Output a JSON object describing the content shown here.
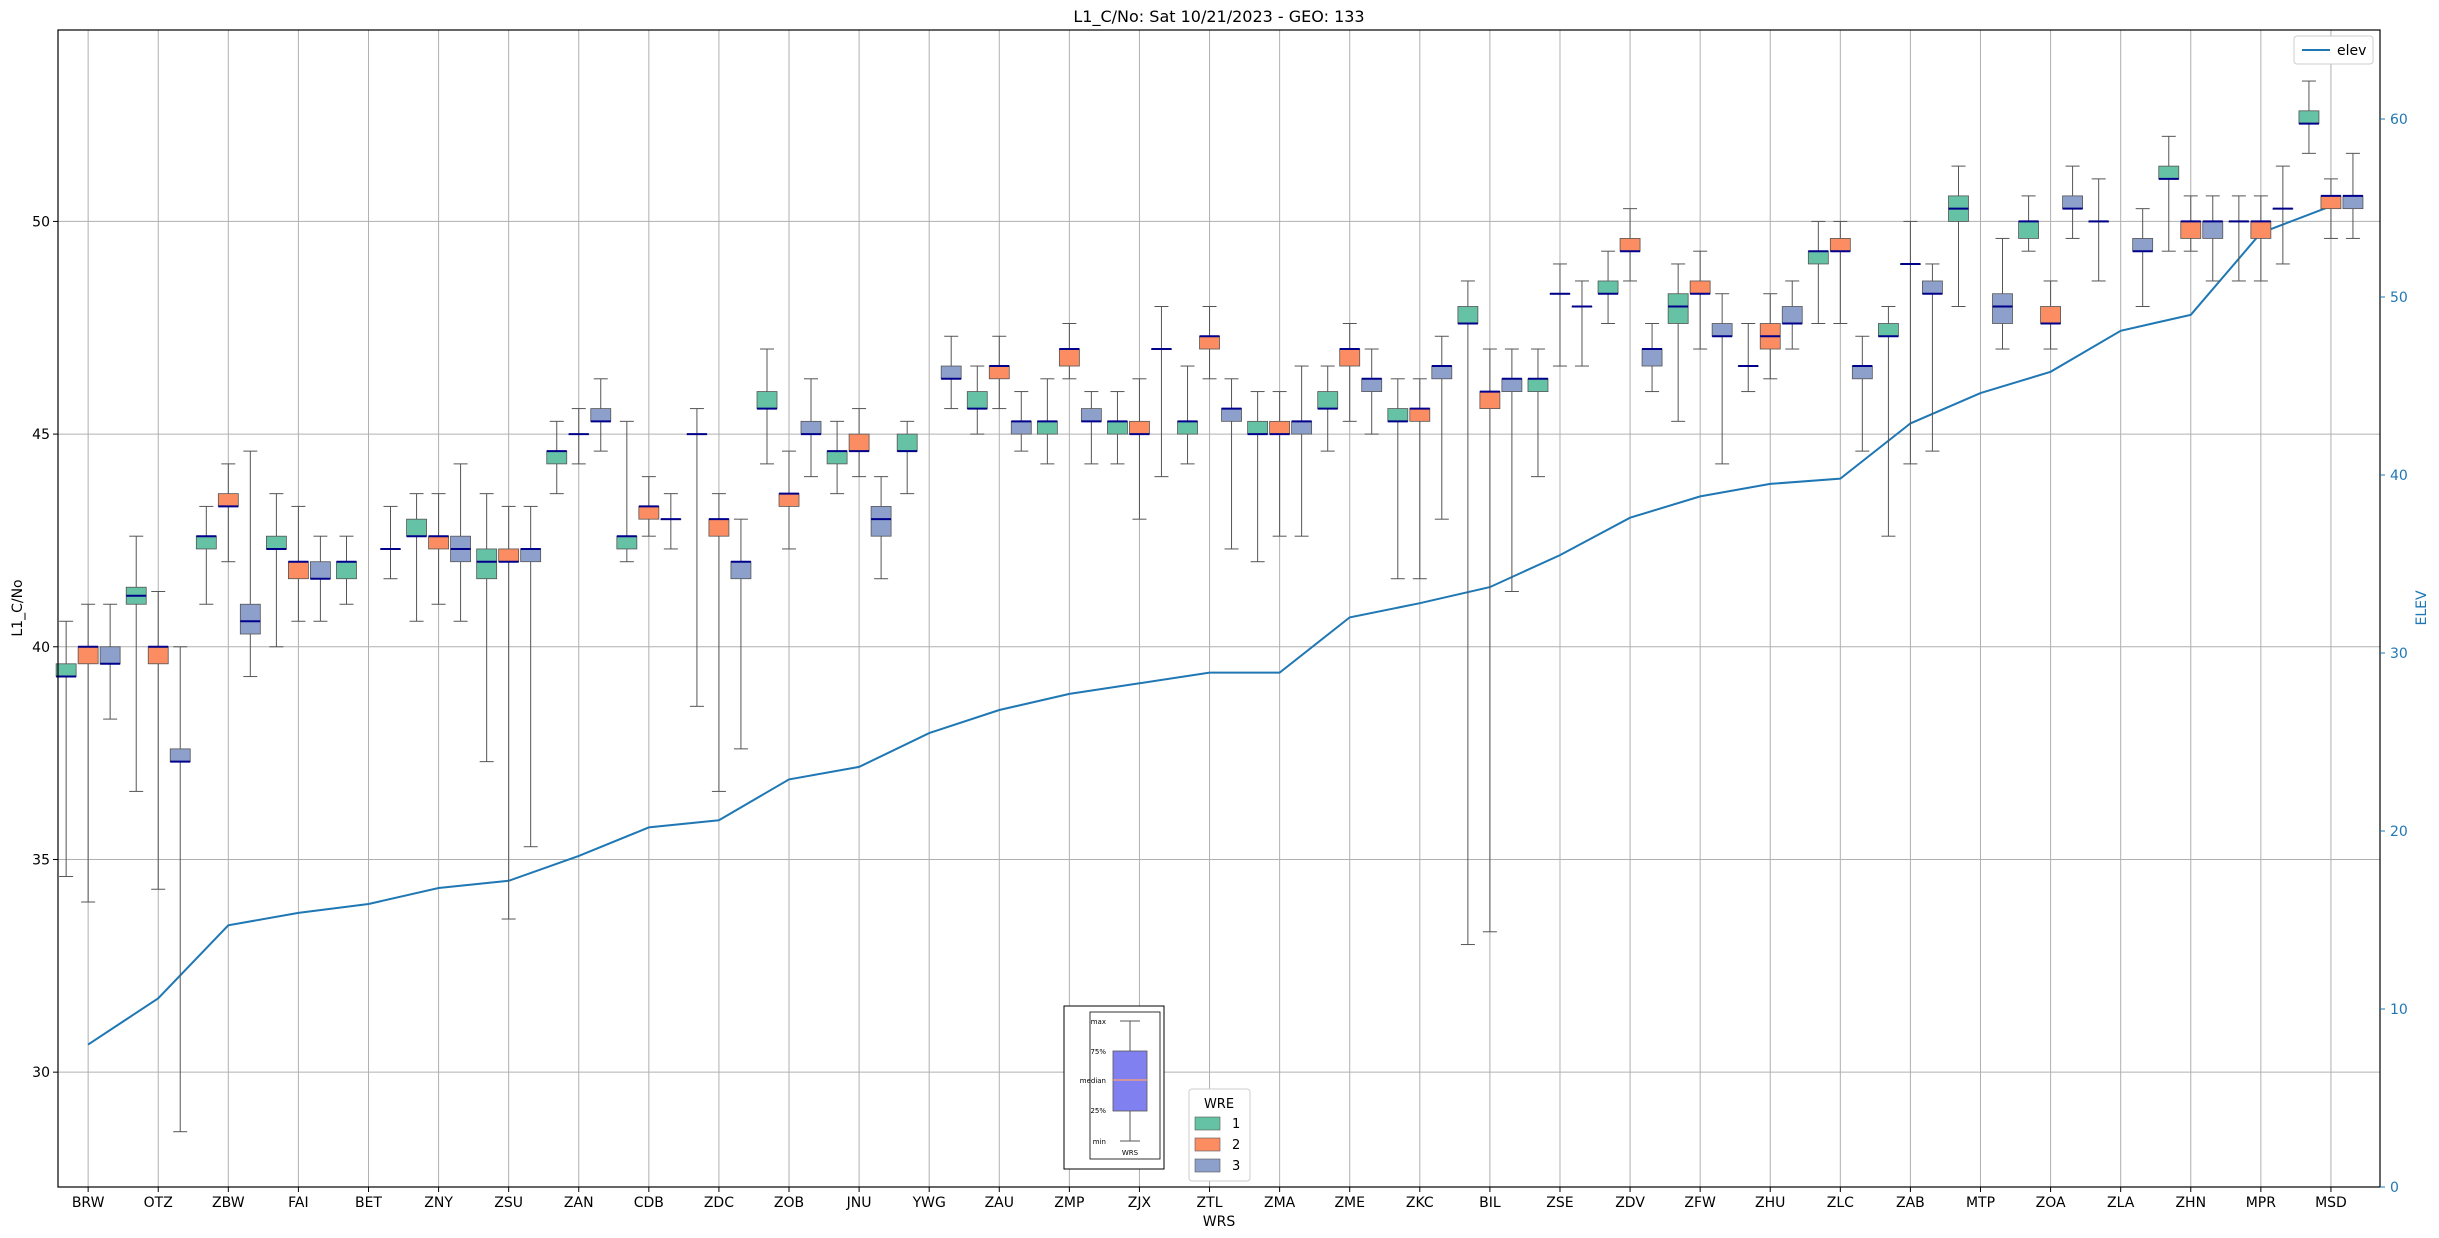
{
  "chart_data": {
    "type": "box",
    "title": "L1_C/No: Sat 10/21/2023 - GEO: 133",
    "xlabel": "WRS",
    "ylabel": "L1_C/No",
    "y2label": "ELEV",
    "ylim": [
      27.3,
      54.5
    ],
    "y2lim": [
      0,
      65
    ],
    "yticks": [
      "30",
      "35",
      "40",
      "45",
      "50"
    ],
    "y2ticks": [
      "0",
      "10",
      "20",
      "30",
      "40",
      "50",
      "60"
    ],
    "grid": true,
    "categories": [
      "BRW",
      "OTZ",
      "ZBW",
      "FAI",
      "BET",
      "ZNY",
      "ZSU",
      "ZAN",
      "CDB",
      "ZDC",
      "ZOB",
      "JNU",
      "YWG",
      "ZAU",
      "ZMP",
      "ZJX",
      "ZTL",
      "ZMA",
      "ZME",
      "ZKC",
      "BIL",
      "ZSE",
      "ZDV",
      "ZFW",
      "ZHU",
      "ZLC",
      "ZAB",
      "MTP",
      "ZOA",
      "ZLA",
      "ZHN",
      "MPR",
      "MSD"
    ],
    "legend_title": "WRE",
    "legend_loc": "lower-center",
    "series": [
      {
        "name": "1",
        "color": "#66c2a5",
        "boxes": [
          [
            34.6,
            39.3,
            39.3,
            39.6,
            40.6
          ],
          [
            36.6,
            41.0,
            41.2,
            41.4,
            42.6
          ],
          [
            41.0,
            42.3,
            42.6,
            42.6,
            43.3
          ],
          [
            40.0,
            42.3,
            42.3,
            42.6,
            43.6
          ],
          [
            41.0,
            41.6,
            42.0,
            42.0,
            42.6
          ],
          [
            40.6,
            42.6,
            42.6,
            43.0,
            43.6
          ],
          [
            37.3,
            41.6,
            42.0,
            42.3,
            43.6
          ],
          [
            43.6,
            44.3,
            44.6,
            44.6,
            45.3
          ],
          [
            42.0,
            42.3,
            42.6,
            42.6,
            45.3
          ],
          [
            38.6,
            45.0,
            45.0,
            45.0,
            45.6
          ],
          [
            44.3,
            45.6,
            45.6,
            46.0,
            47.0
          ],
          [
            43.6,
            44.3,
            44.6,
            44.6,
            45.3
          ],
          [
            43.6,
            44.6,
            44.6,
            45.0,
            45.3
          ],
          [
            45.0,
            45.6,
            45.6,
            46.0,
            46.6
          ],
          [
            44.3,
            45.0,
            45.3,
            45.3,
            46.3
          ],
          [
            44.3,
            45.0,
            45.3,
            45.3,
            46.0
          ],
          [
            44.3,
            45.0,
            45.3,
            45.3,
            46.6
          ],
          [
            42.0,
            45.0,
            45.0,
            45.3,
            46.0
          ],
          [
            44.6,
            45.6,
            45.6,
            46.0,
            46.6
          ],
          [
            41.6,
            45.3,
            45.3,
            45.6,
            46.3
          ],
          [
            33.0,
            47.6,
            47.6,
            48.0,
            48.6
          ],
          [
            44.0,
            46.0,
            46.3,
            46.3,
            47.0
          ],
          [
            47.6,
            48.3,
            48.3,
            48.6,
            49.3
          ],
          [
            45.3,
            47.6,
            48.0,
            48.3,
            49.0
          ],
          [
            46.0,
            46.6,
            46.6,
            46.6,
            47.6
          ],
          [
            47.6,
            49.0,
            49.3,
            49.3,
            50.0
          ],
          [
            42.6,
            47.3,
            47.3,
            47.6,
            48.0
          ],
          [
            48.0,
            50.0,
            50.3,
            50.6,
            51.3
          ],
          [
            49.3,
            49.6,
            50.0,
            50.0,
            50.6
          ],
          [
            48.6,
            50.0,
            50.0,
            50.0,
            51.0
          ],
          [
            49.3,
            51.0,
            51.0,
            51.3,
            52.0
          ],
          [
            48.6,
            50.0,
            50.0,
            50.0,
            50.6
          ],
          [
            51.6,
            52.3,
            52.3,
            52.6,
            53.3
          ]
        ]
      },
      {
        "name": "2",
        "color": "#fc8d62",
        "boxes": [
          [
            34.0,
            39.6,
            40.0,
            40.0,
            41.0
          ],
          [
            34.3,
            39.6,
            40.0,
            40.0,
            41.3
          ],
          [
            42.0,
            43.3,
            43.3,
            43.6,
            44.3
          ],
          [
            40.6,
            41.6,
            42.0,
            42.0,
            43.3
          ],
          null,
          [
            41.0,
            42.3,
            42.6,
            42.6,
            43.6
          ],
          [
            33.6,
            42.0,
            42.0,
            42.3,
            43.3
          ],
          [
            44.3,
            45.0,
            45.0,
            45.0,
            45.6
          ],
          [
            42.6,
            43.0,
            43.3,
            43.3,
            44.0
          ],
          [
            36.6,
            42.6,
            43.0,
            43.0,
            43.6
          ],
          [
            42.3,
            43.3,
            43.6,
            43.6,
            44.6
          ],
          [
            44.0,
            44.6,
            44.6,
            45.0,
            45.6
          ],
          null,
          [
            45.6,
            46.3,
            46.6,
            46.6,
            47.3
          ],
          [
            46.3,
            46.6,
            47.0,
            47.0,
            47.6
          ],
          [
            43.0,
            45.0,
            45.0,
            45.3,
            46.3
          ],
          [
            46.3,
            47.0,
            47.3,
            47.3,
            48.0
          ],
          [
            42.6,
            45.0,
            45.0,
            45.3,
            46.0
          ],
          [
            45.3,
            46.6,
            47.0,
            47.0,
            47.6
          ],
          [
            41.6,
            45.3,
            45.6,
            45.6,
            46.3
          ],
          [
            33.3,
            45.6,
            46.0,
            46.0,
            47.0
          ],
          [
            46.6,
            48.3,
            48.3,
            48.3,
            49.0
          ],
          [
            48.6,
            49.3,
            49.3,
            49.6,
            50.3
          ],
          [
            47.0,
            48.3,
            48.3,
            48.6,
            49.3
          ],
          [
            46.3,
            47.0,
            47.3,
            47.6,
            48.3
          ],
          [
            47.6,
            49.3,
            49.3,
            49.6,
            50.0
          ],
          [
            44.3,
            49.0,
            49.0,
            49.0,
            50.0
          ],
          null,
          [
            47.0,
            47.6,
            47.6,
            48.0,
            48.6
          ],
          null,
          [
            49.3,
            49.6,
            50.0,
            50.0,
            50.6
          ],
          [
            48.6,
            49.6,
            50.0,
            50.0,
            50.6
          ],
          [
            49.6,
            50.3,
            50.6,
            50.6,
            51.0
          ]
        ]
      },
      {
        "name": "3",
        "color": "#8da0cb",
        "boxes": [
          [
            38.3,
            39.6,
            39.6,
            40.0,
            41.0
          ],
          [
            28.6,
            37.3,
            37.3,
            37.6,
            40.0
          ],
          [
            39.3,
            40.3,
            40.6,
            41.0,
            44.6
          ],
          [
            40.6,
            41.6,
            41.6,
            42.0,
            42.6
          ],
          [
            41.6,
            42.3,
            42.3,
            42.3,
            43.3
          ],
          [
            40.6,
            42.0,
            42.3,
            42.6,
            44.3
          ],
          [
            35.3,
            42.0,
            42.3,
            42.3,
            43.3
          ],
          [
            44.6,
            45.3,
            45.3,
            45.6,
            46.3
          ],
          [
            42.3,
            43.0,
            43.0,
            43.0,
            43.6
          ],
          [
            37.6,
            41.6,
            42.0,
            42.0,
            43.0
          ],
          [
            44.0,
            45.0,
            45.0,
            45.3,
            46.3
          ],
          [
            41.6,
            42.6,
            43.0,
            43.3,
            44.0
          ],
          [
            45.6,
            46.3,
            46.3,
            46.6,
            47.3
          ],
          [
            44.6,
            45.0,
            45.3,
            45.3,
            46.0
          ],
          [
            44.3,
            45.3,
            45.3,
            45.6,
            46.0
          ],
          [
            44.0,
            47.0,
            47.0,
            47.0,
            48.0
          ],
          [
            42.3,
            45.3,
            45.6,
            45.6,
            46.3
          ],
          [
            42.6,
            45.0,
            45.3,
            45.3,
            46.6
          ],
          [
            45.0,
            46.0,
            46.3,
            46.3,
            47.0
          ],
          [
            43.0,
            46.3,
            46.6,
            46.6,
            47.3
          ],
          [
            41.3,
            46.0,
            46.3,
            46.3,
            47.0
          ],
          [
            46.6,
            48.0,
            48.0,
            48.0,
            48.6
          ],
          [
            46.0,
            46.6,
            47.0,
            47.0,
            47.6
          ],
          [
            44.3,
            47.3,
            47.3,
            47.6,
            48.3
          ],
          [
            47.0,
            47.6,
            47.6,
            48.0,
            48.6
          ],
          [
            44.6,
            46.3,
            46.6,
            46.6,
            47.3
          ],
          [
            44.6,
            48.3,
            48.3,
            48.6,
            49.0
          ],
          [
            47.0,
            47.6,
            48.0,
            48.3,
            49.6
          ],
          [
            49.6,
            50.3,
            50.3,
            50.6,
            51.3
          ],
          [
            48.0,
            49.3,
            49.3,
            49.6,
            50.3
          ],
          [
            48.6,
            49.6,
            50.0,
            50.0,
            50.6
          ],
          [
            49.0,
            50.3,
            50.3,
            50.3,
            51.3
          ],
          [
            49.6,
            50.3,
            50.6,
            50.6,
            51.6
          ]
        ]
      }
    ],
    "line_series": {
      "name": "elev",
      "color": "#1f77b4",
      "axis": "right",
      "values": [
        8.0,
        10.6,
        14.7,
        15.4,
        15.9,
        16.8,
        17.2,
        18.6,
        20.2,
        20.6,
        22.9,
        23.6,
        25.5,
        26.8,
        27.7,
        28.3,
        28.9,
        28.9,
        32.0,
        32.8,
        33.7,
        35.5,
        37.6,
        38.8,
        39.5,
        39.8,
        42.9,
        44.6,
        45.8,
        48.1,
        49.0,
        53.6,
        55.1
      ]
    },
    "inset_legend": {
      "labels": [
        "max",
        "75%",
        "median",
        "25%",
        "min"
      ],
      "xtick": "WRS"
    }
  }
}
